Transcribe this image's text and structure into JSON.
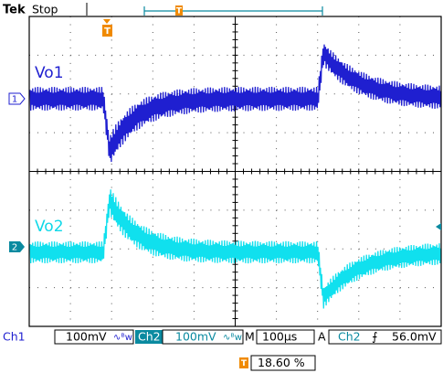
{
  "header": {
    "brand": "Tek",
    "status": "Stop"
  },
  "trigger_marker": "T",
  "channels": [
    {
      "label": "Vo1",
      "marker": "1"
    },
    {
      "label": "Vo2",
      "marker": "2"
    }
  ],
  "status_bar": {
    "ch1": "Ch1",
    "ch1_scale": "100mV",
    "ch1_bw": "∿ᴮw",
    "ch2": "Ch2",
    "ch2_scale": "100mV",
    "ch2_bw": "∿ᴮw",
    "timebase_label": "M",
    "timebase": "100µs",
    "trigger_label": "A",
    "trigger_source": "Ch2",
    "trigger_slope": "⨍",
    "trigger_level": "56.0mV"
  },
  "trigger_position": {
    "value": "18.60 %"
  }
}
